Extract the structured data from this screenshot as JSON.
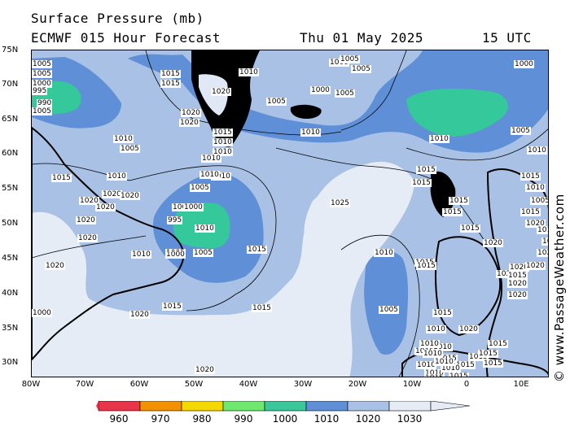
{
  "header": {
    "title": "Surface Pressure (mb)",
    "subtitle": "ECMWF 015 Hour Forecast",
    "date": "Thu 01 May 2025",
    "time": "15 UTC"
  },
  "credit": "© www.PassageWeather.com",
  "axes": {
    "lat_labels": [
      "75N",
      "70N",
      "65N",
      "60N",
      "55N",
      "50N",
      "45N",
      "40N",
      "35N",
      "30N"
    ],
    "lon_labels": [
      "80W",
      "70W",
      "60W",
      "50W",
      "40W",
      "30W",
      "20W",
      "10W",
      "0",
      "10E"
    ]
  },
  "colors": {
    "c_lt1000": "#35c89a",
    "c_1000_1010": "#5f8fd6",
    "c_1010_1020": "#a9c1e4",
    "c_1020_1030": "#e5ecf6",
    "land": "#000000"
  },
  "colorbar": {
    "labels": [
      "960",
      "970",
      "980",
      "990",
      "1000",
      "1010",
      "1020",
      "1030"
    ],
    "colors": [
      "#e8354a",
      "#f39200",
      "#f5d800",
      "#6ee86e",
      "#3cc79a",
      "#5f8fd6",
      "#a9c1e4",
      "#e5ecf6"
    ]
  },
  "isobar_labels": [
    {
      "text": "1005"
    },
    {
      "text": "1005"
    },
    {
      "text": "1000"
    },
    {
      "text": "995"
    },
    {
      "text": "990"
    },
    {
      "text": "1005"
    },
    {
      "text": "1010"
    },
    {
      "text": "1015"
    },
    {
      "text": "1015"
    },
    {
      "text": "1010"
    },
    {
      "text": "1020"
    },
    {
      "text": "1020"
    },
    {
      "text": "1020"
    },
    {
      "text": "1015"
    },
    {
      "text": "1010"
    },
    {
      "text": "1010"
    },
    {
      "text": "1005"
    },
    {
      "text": "1010"
    },
    {
      "text": "1000"
    },
    {
      "text": "1005"
    },
    {
      "text": "1000"
    },
    {
      "text": "1005"
    },
    {
      "text": "1005"
    },
    {
      "text": "1010"
    },
    {
      "text": "1000"
    },
    {
      "text": "1005"
    },
    {
      "text": "1010"
    },
    {
      "text": "1015"
    },
    {
      "text": "1005"
    },
    {
      "text": "1010"
    },
    {
      "text": "1015"
    },
    {
      "text": "1020"
    },
    {
      "text": "1020"
    },
    {
      "text": "1020"
    },
    {
      "text": "1020"
    },
    {
      "text": "1020"
    },
    {
      "text": "1020"
    },
    {
      "text": "1010"
    },
    {
      "text": "1005"
    },
    {
      "text": "1000"
    },
    {
      "text": "995"
    },
    {
      "text": "1000"
    },
    {
      "text": "1005"
    },
    {
      "text": "1010"
    },
    {
      "text": "1010"
    },
    {
      "text": "1015"
    },
    {
      "text": "1020"
    },
    {
      "text": "1020"
    },
    {
      "text": "1025"
    },
    {
      "text": "1010"
    },
    {
      "text": "1005"
    },
    {
      "text": "1015"
    },
    {
      "text": "1010"
    },
    {
      "text": "1015"
    },
    {
      "text": "1015"
    },
    {
      "text": "1015"
    },
    {
      "text": "1015"
    },
    {
      "text": "1015"
    },
    {
      "text": "1020"
    },
    {
      "text": "1020"
    },
    {
      "text": "1020"
    },
    {
      "text": "1020"
    },
    {
      "text": "1020"
    },
    {
      "text": "1010"
    },
    {
      "text": "1015"
    },
    {
      "text": "1015"
    },
    {
      "text": "1015"
    },
    {
      "text": "1010"
    },
    {
      "text": "1010"
    },
    {
      "text": "1010"
    },
    {
      "text": "1015"
    },
    {
      "text": "1015"
    },
    {
      "text": "1015"
    },
    {
      "text": "1015"
    },
    {
      "text": "1015"
    },
    {
      "text": "1015"
    },
    {
      "text": "1015"
    },
    {
      "text": "1015"
    },
    {
      "text": "1010"
    },
    {
      "text": "1010"
    },
    {
      "text": "1010"
    },
    {
      "text": "1010"
    },
    {
      "text": "1010"
    },
    {
      "text": "1000"
    },
    {
      "text": "1005"
    },
    {
      "text": "1010"
    },
    {
      "text": "1015"
    },
    {
      "text": "1010"
    },
    {
      "text": "1005"
    },
    {
      "text": "1015"
    },
    {
      "text": "1020"
    },
    {
      "text": "1015"
    },
    {
      "text": "1020"
    },
    {
      "text": "1020"
    },
    {
      "text": "1020"
    },
    {
      "text": "1020"
    },
    {
      "text": "1015"
    },
    {
      "text": "1020"
    },
    {
      "text": "1000"
    }
  ]
}
